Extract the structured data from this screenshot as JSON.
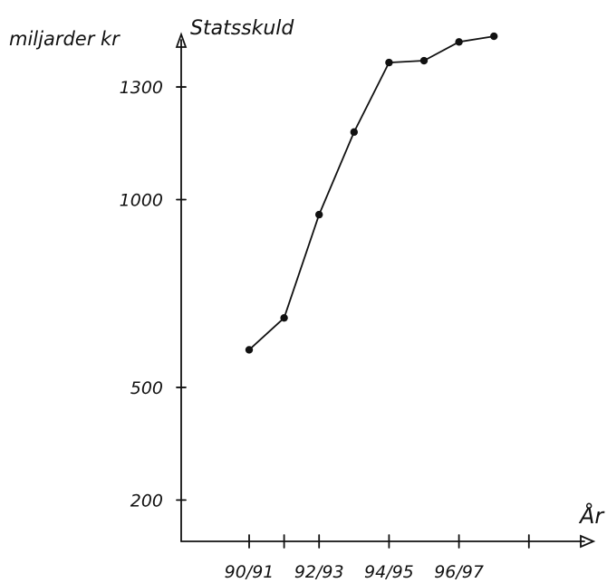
{
  "chart_data": {
    "type": "line",
    "title": "Statsskuld",
    "ylabel": "miljarder kr",
    "xlabel": "År",
    "x_tick_labels": [
      "90/91",
      "92/93",
      "94/95",
      "96/97"
    ],
    "y_ticks": [
      200,
      500,
      1000,
      1300
    ],
    "y_tick_labels": [
      "200",
      "500",
      "1000",
      "1300"
    ],
    "ylim": [
      90,
      1440
    ],
    "x_range": [
      -0.8,
      9.2
    ],
    "grid": false,
    "series": [
      {
        "x": [
          0,
          1,
          2,
          3,
          4,
          5,
          6,
          7
        ],
        "values": [
          600,
          685,
          960,
          1180,
          1365,
          1370,
          1420,
          1435
        ]
      }
    ],
    "color": "#111111"
  }
}
